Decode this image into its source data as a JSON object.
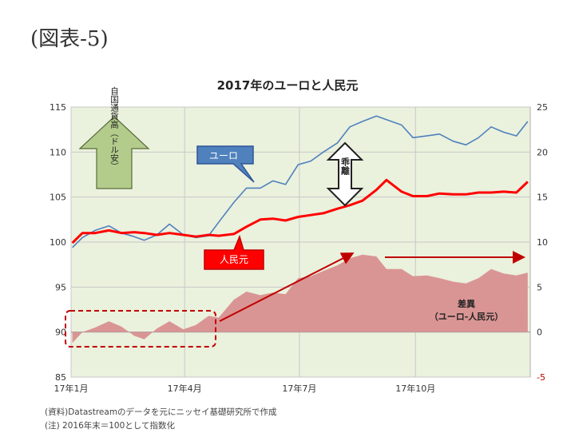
{
  "figure_label": "(図表-5)",
  "notes": [
    "(資料)Datastreamのデータを元にニッセイ基礎研究所で作成",
    "(注) 2016年末＝100として指数化"
  ],
  "callouts": {
    "euro": "ユーロ",
    "rmb": "人民元",
    "up_arrow": "自国通貨高（ドル安）",
    "divergence": "乖離",
    "diff": "差異",
    "diff_sub": "（ユーロ-人民元）"
  },
  "colors": {
    "plot_bg": "#eaf1dd",
    "euro": "#4f81bd",
    "rmb": "#ff0000",
    "diff_fill": "#d99594",
    "arrow": "#c00000",
    "up_arrow_fill": "#b3cc8c"
  },
  "chart_data": {
    "type": "line",
    "title": "2017年のユーロと人民元",
    "x_ticks": [
      "17年1月",
      "17年4月",
      "17年7月",
      "17年10月"
    ],
    "y_left": {
      "ticks": [
        85,
        90,
        95,
        100,
        105,
        110,
        115
      ],
      "ylim": [
        85,
        115
      ]
    },
    "y_right": {
      "ticks": [
        -5,
        0,
        5,
        10,
        15,
        20,
        25
      ],
      "ylim": [
        -5,
        25
      ]
    },
    "x_range": [
      "2017-01-01",
      "2017-12-31"
    ],
    "grid": true,
    "series": [
      {
        "name": "ユーロ",
        "axis": "left",
        "x": [
          "2017-01-02",
          "2017-01-10",
          "2017-01-20",
          "2017-01-31",
          "2017-02-10",
          "2017-02-20",
          "2017-02-28",
          "2017-03-10",
          "2017-03-20",
          "2017-03-31",
          "2017-04-10",
          "2017-04-20",
          "2017-04-28",
          "2017-05-10",
          "2017-05-20",
          "2017-05-31",
          "2017-06-10",
          "2017-06-20",
          "2017-06-30",
          "2017-07-10",
          "2017-07-20",
          "2017-07-31",
          "2017-08-10",
          "2017-08-20",
          "2017-08-31",
          "2017-09-08",
          "2017-09-20",
          "2017-09-29",
          "2017-10-10",
          "2017-10-20",
          "2017-10-31",
          "2017-11-10",
          "2017-11-20",
          "2017-11-30",
          "2017-12-10",
          "2017-12-20",
          "2017-12-29"
        ],
        "values": [
          99.4,
          100.5,
          101.3,
          101.8,
          101.0,
          100.6,
          100.2,
          100.8,
          102.0,
          100.8,
          100.5,
          100.7,
          102.2,
          104.4,
          106.0,
          106.0,
          106.8,
          106.4,
          108.6,
          109.0,
          110.0,
          111.0,
          112.8,
          113.4,
          114.0,
          113.6,
          113.0,
          111.6,
          111.8,
          112.0,
          111.2,
          110.8,
          111.6,
          112.8,
          112.2,
          111.8,
          113.4
        ]
      },
      {
        "name": "人民元",
        "axis": "left",
        "x": [
          "2017-01-02",
          "2017-01-10",
          "2017-01-20",
          "2017-01-31",
          "2017-02-10",
          "2017-02-20",
          "2017-02-28",
          "2017-03-10",
          "2017-03-20",
          "2017-03-31",
          "2017-04-10",
          "2017-04-20",
          "2017-04-28",
          "2017-05-10",
          "2017-05-20",
          "2017-05-31",
          "2017-06-10",
          "2017-06-20",
          "2017-06-30",
          "2017-07-10",
          "2017-07-20",
          "2017-07-31",
          "2017-08-10",
          "2017-08-20",
          "2017-08-31",
          "2017-09-08",
          "2017-09-20",
          "2017-09-29",
          "2017-10-10",
          "2017-10-20",
          "2017-10-31",
          "2017-11-10",
          "2017-11-20",
          "2017-11-30",
          "2017-12-10",
          "2017-12-20",
          "2017-12-29"
        ],
        "values": [
          99.9,
          101.0,
          101.0,
          101.3,
          101.0,
          101.1,
          101.0,
          100.8,
          101.0,
          100.8,
          100.6,
          100.8,
          100.7,
          100.9,
          101.7,
          102.5,
          102.6,
          102.4,
          102.8,
          103.0,
          103.2,
          103.7,
          104.1,
          104.6,
          105.8,
          106.9,
          105.6,
          105.1,
          105.1,
          105.4,
          105.3,
          105.3,
          105.5,
          105.5,
          105.6,
          105.5,
          106.7
        ]
      },
      {
        "name": "差異（ユーロ-人民元）",
        "axis": "right",
        "type": "area",
        "x": [
          "2017-01-02",
          "2017-01-10",
          "2017-01-20",
          "2017-01-31",
          "2017-02-10",
          "2017-02-20",
          "2017-02-28",
          "2017-03-10",
          "2017-03-20",
          "2017-03-31",
          "2017-04-10",
          "2017-04-20",
          "2017-04-28",
          "2017-05-10",
          "2017-05-20",
          "2017-05-31",
          "2017-06-10",
          "2017-06-20",
          "2017-06-30",
          "2017-07-10",
          "2017-07-20",
          "2017-07-31",
          "2017-08-10",
          "2017-08-20",
          "2017-08-31",
          "2017-09-08",
          "2017-09-20",
          "2017-09-29",
          "2017-10-10",
          "2017-10-20",
          "2017-10-31",
          "2017-11-10",
          "2017-11-20",
          "2017-11-30",
          "2017-12-10",
          "2017-12-20",
          "2017-12-29"
        ],
        "values": [
          -1.2,
          0.0,
          0.5,
          1.2,
          0.6,
          -0.4,
          -0.8,
          0.4,
          1.2,
          0.3,
          0.8,
          1.8,
          1.6,
          3.6,
          4.5,
          4.1,
          4.4,
          4.2,
          6.0,
          6.2,
          6.8,
          7.4,
          8.2,
          8.6,
          8.4,
          7.0,
          7.0,
          6.2,
          6.3,
          6.0,
          5.6,
          5.4,
          6.0,
          7.0,
          6.5,
          6.3,
          6.6
        ]
      }
    ]
  }
}
